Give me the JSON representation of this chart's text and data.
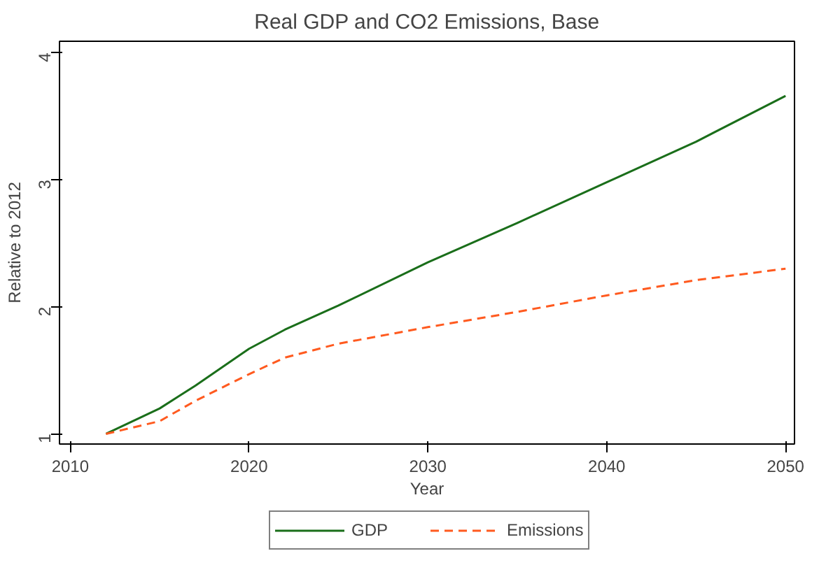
{
  "chart_data": {
    "type": "line",
    "title": "Real GDP and CO2 Emissions, Base",
    "xlabel": "Year",
    "ylabel": "Relative to 2012",
    "x": [
      2012,
      2015,
      2017,
      2020,
      2022,
      2025,
      2030,
      2035,
      2040,
      2045,
      2050
    ],
    "series": [
      {
        "name": "GDP",
        "color": "#1a6e1a",
        "line_style": "solid",
        "values": [
          1.0,
          1.2,
          1.38,
          1.67,
          1.82,
          2.01,
          2.35,
          2.66,
          2.98,
          3.3,
          3.66
        ]
      },
      {
        "name": "Emissions",
        "color": "#ff5a1f",
        "line_style": "dashed",
        "values": [
          1.0,
          1.1,
          1.26,
          1.47,
          1.6,
          1.71,
          1.84,
          1.96,
          2.09,
          2.21,
          2.3
        ]
      }
    ],
    "xlim": [
      2009.4,
      2050.5
    ],
    "ylim": [
      0.92,
      4.09
    ],
    "xticks": [
      2010,
      2020,
      2030,
      2040,
      2050
    ],
    "yticks": [
      1,
      2,
      3,
      4
    ],
    "grid": false,
    "legend": "bottom",
    "marker": "none"
  }
}
